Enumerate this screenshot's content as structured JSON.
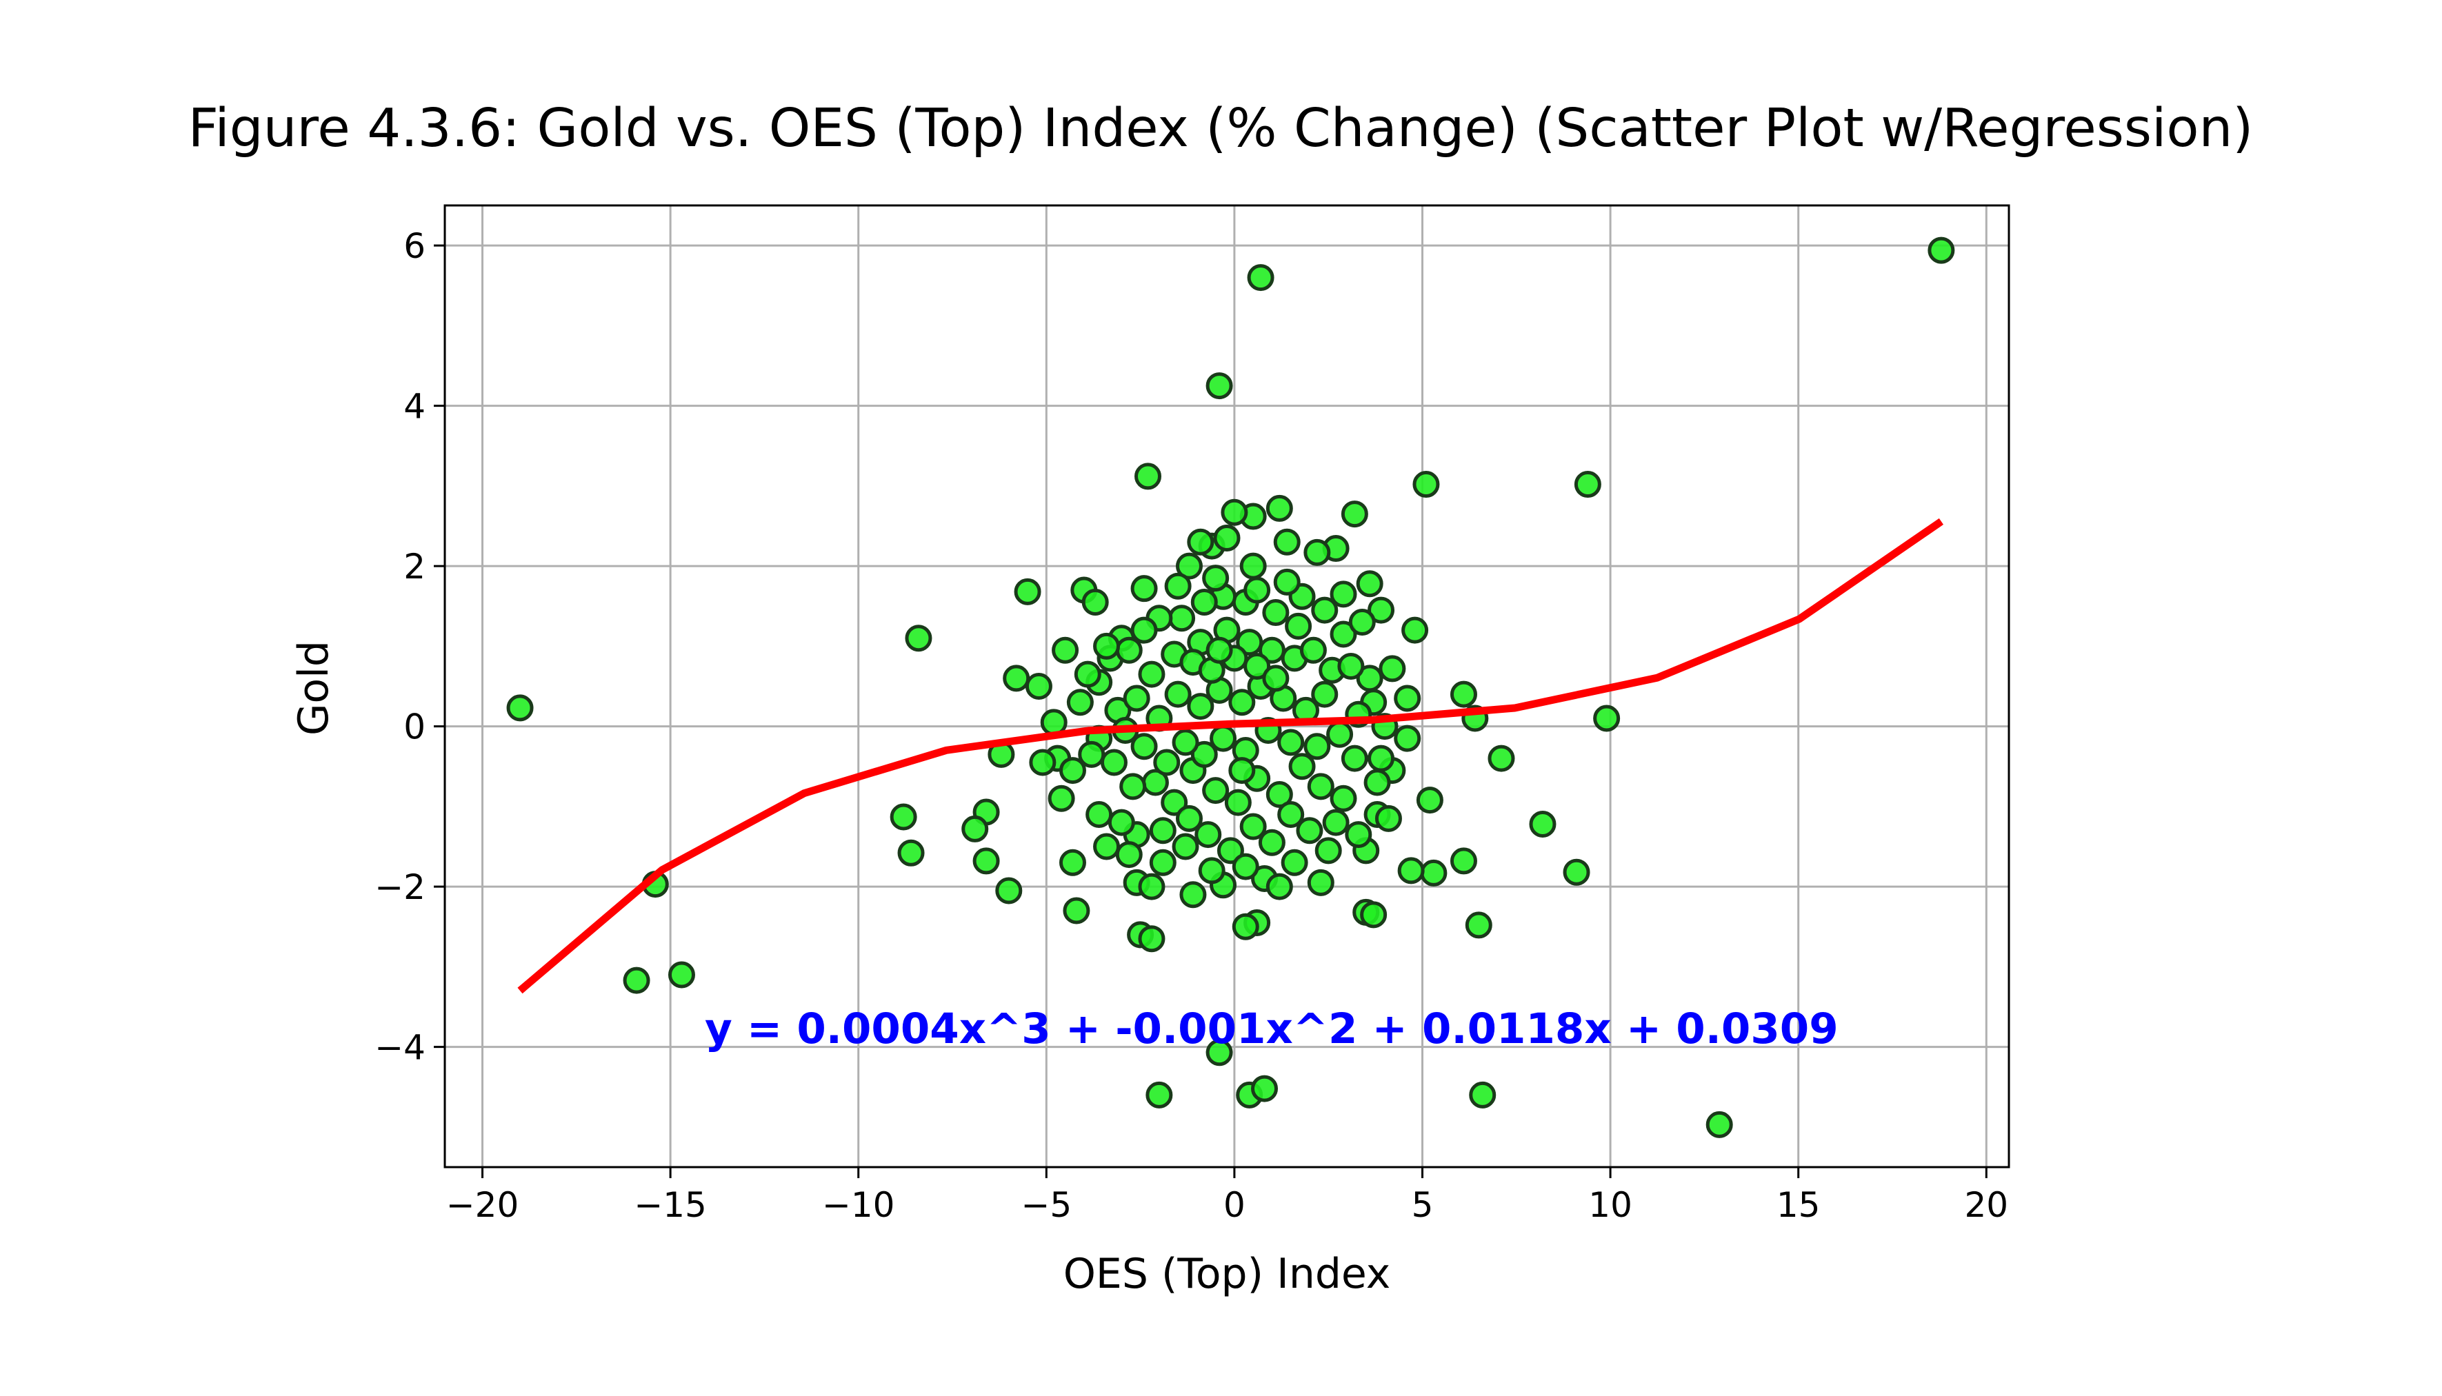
{
  "chart_data": {
    "type": "scatter",
    "title": "Figure 4.3.6: Gold vs. OES (Top) Index (% Change) (Scatter Plot w/Regression)",
    "xlabel": "OES (Top) Index",
    "ylabel": "Gold",
    "xlim": [
      -21,
      20.6
    ],
    "ylim": [
      -5.5,
      6.5
    ],
    "xticks": [
      -20,
      -15,
      -10,
      -5,
      0,
      5,
      10,
      15,
      20
    ],
    "xtick_labels": [
      "−20",
      "−15",
      "−10",
      "−5",
      "0",
      "5",
      "10",
      "15",
      "20"
    ],
    "yticks": [
      -4,
      -2,
      0,
      2,
      4,
      6
    ],
    "ytick_labels": [
      "−4",
      "−2",
      "0",
      "2",
      "4",
      "6"
    ],
    "grid": true,
    "legend": "none",
    "colors": {
      "points_fill": "#22ee22",
      "points_edge": "#1a3a1a",
      "fit_line": "#ff0000",
      "equation": "#0000ff",
      "grid": "#b0b0b0"
    },
    "regression": {
      "degree": 3,
      "coefficients": [
        0.0004,
        -0.001,
        0.0118,
        0.0309
      ],
      "equation_text": "y = 0.0004x^3 + -0.001x^2 + 0.0118x + 0.0309",
      "x_range": [
        -19.0,
        18.8
      ]
    },
    "points": [
      [
        -19.0,
        0.23
      ],
      [
        18.8,
        5.94
      ],
      [
        0.7,
        5.6
      ],
      [
        -0.4,
        4.25
      ],
      [
        -2.3,
        3.12
      ],
      [
        5.1,
        3.02
      ],
      [
        9.4,
        3.02
      ],
      [
        -8.4,
        1.1
      ],
      [
        -5.5,
        1.68
      ],
      [
        -15.9,
        -3.17
      ],
      [
        -14.7,
        -3.1
      ],
      [
        -15.4,
        -1.97
      ],
      [
        -8.8,
        -1.13
      ],
      [
        -8.6,
        -1.58
      ],
      [
        -6.6,
        -1.07
      ],
      [
        -6.9,
        -1.28
      ],
      [
        -6.6,
        -1.68
      ],
      [
        -6.0,
        -2.05
      ],
      [
        -6.2,
        -0.35
      ],
      [
        -5.8,
        0.6
      ],
      [
        -5.2,
        0.5
      ],
      [
        -4.5,
        0.95
      ],
      [
        -4.0,
        1.7
      ],
      [
        -3.7,
        1.55
      ],
      [
        -4.2,
        -2.3
      ],
      [
        -4.3,
        -1.7
      ],
      [
        -2.5,
        -2.6
      ],
      [
        -2.2,
        -2.65
      ],
      [
        -2.0,
        -4.6
      ],
      [
        -0.4,
        -4.07
      ],
      [
        0.4,
        -4.6
      ],
      [
        0.8,
        -4.52
      ],
      [
        6.6,
        -4.6
      ],
      [
        12.9,
        -4.97
      ],
      [
        6.5,
        -2.48
      ],
      [
        0.6,
        -2.45
      ],
      [
        0.3,
        -2.5
      ],
      [
        3.5,
        -2.32
      ],
      [
        3.7,
        -2.35
      ],
      [
        9.1,
        -1.82
      ],
      [
        8.2,
        -1.22
      ],
      [
        6.1,
        -1.68
      ],
      [
        5.3,
        -1.83
      ],
      [
        4.7,
        -1.8
      ],
      [
        5.2,
        -0.92
      ],
      [
        7.1,
        -0.4
      ],
      [
        9.9,
        0.1
      ],
      [
        6.4,
        0.1
      ],
      [
        6.1,
        0.4
      ],
      [
        4.8,
        1.2
      ],
      [
        4.2,
        0.72
      ],
      [
        3.9,
        1.45
      ],
      [
        3.6,
        1.78
      ],
      [
        3.2,
        2.65
      ],
      [
        2.7,
        2.22
      ],
      [
        2.2,
        2.17
      ],
      [
        1.4,
        2.3
      ],
      [
        1.2,
        2.72
      ],
      [
        0.5,
        2.62
      ],
      [
        0.0,
        2.67
      ],
      [
        -0.6,
        2.25
      ],
      [
        -0.9,
        2.3
      ],
      [
        -1.2,
        2.0
      ],
      [
        0.5,
        2.0
      ],
      [
        -2.4,
        1.72
      ],
      [
        -3.0,
        1.1
      ],
      [
        -3.3,
        0.85
      ],
      [
        -3.6,
        0.55
      ],
      [
        -4.1,
        0.3
      ],
      [
        -4.7,
        -0.4
      ],
      [
        -5.1,
        -0.45
      ],
      [
        -4.6,
        -0.9
      ],
      [
        -3.6,
        -1.1
      ],
      [
        -3.4,
        -1.5
      ],
      [
        -2.6,
        -1.95
      ],
      [
        -1.9,
        -1.7
      ],
      [
        -1.1,
        -2.1
      ],
      [
        -0.3,
        -1.98
      ],
      [
        0.8,
        -1.9
      ],
      [
        1.6,
        -1.7
      ],
      [
        2.3,
        -1.95
      ],
      [
        2.5,
        -1.55
      ],
      [
        3.5,
        -1.55
      ],
      [
        3.3,
        -1.35
      ],
      [
        2.7,
        -1.2
      ],
      [
        3.8,
        -1.1
      ],
      [
        4.1,
        -1.15
      ],
      [
        4.2,
        -0.55
      ],
      [
        4.6,
        -0.15
      ],
      [
        4.6,
        0.35
      ],
      [
        3.6,
        0.6
      ],
      [
        2.9,
        1.15
      ],
      [
        2.4,
        1.45
      ],
      [
        1.8,
        1.62
      ],
      [
        1.1,
        1.42
      ],
      [
        0.3,
        1.55
      ],
      [
        -0.3,
        1.62
      ],
      [
        -0.8,
        1.55
      ],
      [
        -1.4,
        1.35
      ],
      [
        -2.0,
        1.35
      ],
      [
        -2.4,
        1.2
      ],
      [
        -2.8,
        0.95
      ],
      [
        -2.2,
        0.65
      ],
      [
        -1.6,
        0.9
      ],
      [
        -0.9,
        1.05
      ],
      [
        -0.2,
        1.2
      ],
      [
        0.4,
        1.05
      ],
      [
        1.0,
        0.95
      ],
      [
        1.6,
        0.85
      ],
      [
        2.1,
        0.95
      ],
      [
        2.6,
        0.7
      ],
      [
        3.1,
        0.75
      ],
      [
        3.7,
        0.3
      ],
      [
        3.3,
        0.15
      ],
      [
        2.8,
        -0.1
      ],
      [
        3.2,
        -0.4
      ],
      [
        3.8,
        -0.7
      ],
      [
        2.9,
        -0.9
      ],
      [
        2.3,
        -0.75
      ],
      [
        1.8,
        -0.5
      ],
      [
        1.2,
        -0.85
      ],
      [
        0.6,
        -0.65
      ],
      [
        0.1,
        -0.95
      ],
      [
        -0.5,
        -0.8
      ],
      [
        -1.1,
        -0.55
      ],
      [
        -1.6,
        -0.95
      ],
      [
        -2.1,
        -0.7
      ],
      [
        -2.7,
        -0.75
      ],
      [
        -3.2,
        -0.45
      ],
      [
        -3.6,
        -0.15
      ],
      [
        -3.1,
        0.2
      ],
      [
        -2.6,
        0.35
      ],
      [
        -2.0,
        0.1
      ],
      [
        -1.5,
        0.4
      ],
      [
        -0.9,
        0.25
      ],
      [
        -0.4,
        0.45
      ],
      [
        0.2,
        0.3
      ],
      [
        0.7,
        0.5
      ],
      [
        1.3,
        0.35
      ],
      [
        1.9,
        0.2
      ],
      [
        2.4,
        0.4
      ],
      [
        2.2,
        -0.25
      ],
      [
        1.5,
        -0.2
      ],
      [
        0.9,
        -0.05
      ],
      [
        0.3,
        -0.3
      ],
      [
        -0.3,
        -0.15
      ],
      [
        -0.8,
        -0.35
      ],
      [
        -1.3,
        -0.2
      ],
      [
        -1.8,
        -0.45
      ],
      [
        -2.4,
        -0.25
      ],
      [
        -2.9,
        -0.05
      ],
      [
        -1.1,
        0.8
      ],
      [
        -0.6,
        0.7
      ],
      [
        0.0,
        0.85
      ],
      [
        0.6,
        0.75
      ],
      [
        1.1,
        0.6
      ],
      [
        -1.9,
        -1.3
      ],
      [
        -1.3,
        -1.5
      ],
      [
        -0.7,
        -1.35
      ],
      [
        -0.1,
        -1.55
      ],
      [
        0.5,
        -1.25
      ],
      [
        1.0,
        -1.45
      ],
      [
        1.5,
        -1.1
      ],
      [
        2.0,
        -1.3
      ],
      [
        -2.6,
        -1.35
      ],
      [
        -3.0,
        -1.2
      ],
      [
        -0.5,
        1.85
      ],
      [
        0.6,
        1.7
      ],
      [
        1.4,
        1.8
      ],
      [
        -1.5,
        1.75
      ],
      [
        -0.2,
        2.35
      ],
      [
        0.3,
        -1.75
      ],
      [
        -0.6,
        -1.8
      ],
      [
        1.2,
        -2.0
      ],
      [
        -2.2,
        -2.0
      ],
      [
        -2.8,
        -1.6
      ],
      [
        -3.8,
        -0.35
      ],
      [
        -4.3,
        -0.55
      ],
      [
        -4.8,
        0.05
      ],
      [
        -3.9,
        0.65
      ],
      [
        -3.4,
        1.0
      ],
      [
        2.9,
        1.65
      ],
      [
        3.4,
        1.3
      ],
      [
        4.0,
        0.0
      ],
      [
        3.9,
        -0.4
      ],
      [
        1.7,
        1.25
      ],
      [
        -0.4,
        0.95
      ],
      [
        -1.2,
        -1.15
      ],
      [
        0.2,
        -0.55
      ]
    ]
  }
}
